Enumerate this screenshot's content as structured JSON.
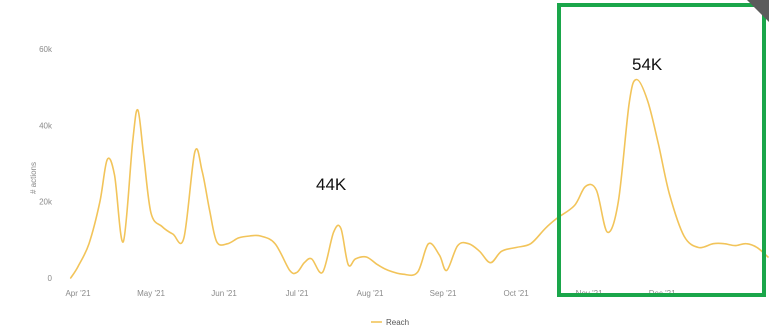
{
  "chart_data": {
    "type": "line",
    "ylabel": "# actions",
    "y_ticks": [
      "0",
      "20k",
      "40k",
      "60k"
    ],
    "ylim": [
      0,
      60000
    ],
    "x_ticks": [
      "Apr '21",
      "May '21",
      "Jun '21",
      "Jul '21",
      "Aug '21",
      "Sep '21",
      "Oct '21",
      "Nov '21",
      "Dec '21"
    ],
    "xlim": [
      0,
      9.45
    ],
    "series": [
      {
        "name": "Reach",
        "color": "#f2c45a",
        "x": [
          -0.1,
          0.0,
          0.15,
          0.3,
          0.4,
          0.5,
          0.62,
          0.75,
          0.82,
          0.9,
          1.0,
          1.15,
          1.3,
          1.45,
          1.6,
          1.7,
          1.8,
          1.9,
          2.05,
          2.2,
          2.35,
          2.5,
          2.7,
          2.9,
          3.0,
          3.1,
          3.2,
          3.35,
          3.5,
          3.6,
          3.7,
          3.8,
          3.95,
          4.1,
          4.25,
          4.45,
          4.65,
          4.8,
          4.95,
          5.05,
          5.2,
          5.35,
          5.5,
          5.65,
          5.8,
          6.0,
          6.2,
          6.4,
          6.55,
          6.8,
          6.95,
          7.1,
          7.25,
          7.4,
          7.55,
          7.65,
          7.8,
          7.95,
          8.1,
          8.3,
          8.5,
          8.7,
          8.85,
          9.0,
          9.15,
          9.3,
          9.45
        ],
        "y": [
          0,
          3000,
          9000,
          20000,
          31000,
          27000,
          9500,
          36000,
          44000,
          32000,
          17000,
          13500,
          11500,
          10500,
          33000,
          28000,
          18000,
          9500,
          9000,
          10500,
          11000,
          11000,
          9000,
          2000,
          1500,
          4000,
          5000,
          1500,
          12000,
          13000,
          3500,
          5000,
          5500,
          3500,
          2000,
          1000,
          1500,
          9000,
          6000,
          2000,
          8500,
          9000,
          7000,
          4000,
          7000,
          8000,
          9000,
          13000,
          15500,
          19000,
          24000,
          23000,
          12000,
          20000,
          46000,
          52000,
          46500,
          35000,
          22000,
          11000,
          8000,
          9000,
          9000,
          8500,
          9000,
          8000,
          5500
        ]
      }
    ],
    "annotations": [
      "44K",
      "54K"
    ],
    "legend_position": "bottom-center",
    "grid": false
  },
  "highlight": {
    "color": "#1aa64a"
  },
  "corner_color": "#5b5b5b"
}
